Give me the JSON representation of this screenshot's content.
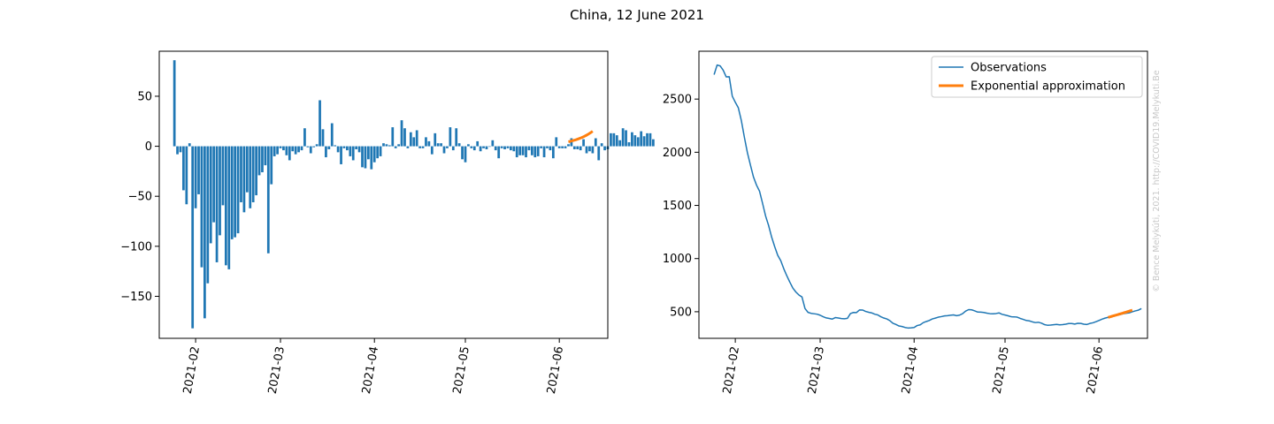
{
  "figure": {
    "title": "China, 12 June 2021",
    "credit": "© Bence Melykúti, 2021. http://COVID19.Melykuti.Be"
  },
  "chart_data": [
    {
      "type": "bar",
      "title": "",
      "xlabel": "",
      "ylabel": "",
      "x_axis": {
        "type": "date",
        "range": [
          "2021-01-20",
          "2021-06-17"
        ],
        "ticks": [
          "2021-02",
          "2021-03",
          "2021-04",
          "2021-05",
          "2021-06"
        ]
      },
      "ylim": [
        -192,
        95
      ],
      "yticks": [
        50,
        0,
        -50,
        -100,
        -150
      ],
      "ytick_labels": [
        "50",
        "0",
        "−50",
        "−100",
        "−150"
      ],
      "colors": {
        "bars": "#1f77b4",
        "fit": "#ff7f0e"
      },
      "series": [
        {
          "start_date": "2021-01-25",
          "values": [
            86,
            -8,
            -6,
            -44,
            -58,
            3,
            -182,
            -62,
            -48,
            -121,
            -172,
            -137,
            -97,
            -76,
            -116,
            -89,
            -59,
            -119,
            -123,
            -93,
            -91,
            -87,
            -56,
            -66,
            -46,
            -62,
            -56,
            -49,
            -29,
            -26,
            -19,
            -107,
            -38,
            -10,
            -8,
            -2,
            -4,
            -9,
            -14,
            -5,
            -8,
            -6,
            -4,
            18,
            -1,
            -7,
            -1,
            2,
            46,
            17,
            -11,
            -3,
            23,
            1,
            -6,
            -18,
            -2,
            -4,
            -10,
            -14,
            -3,
            -6,
            -21,
            -22,
            -13,
            -23,
            -16,
            -12,
            -10,
            3,
            2,
            1,
            19,
            -2,
            2,
            26,
            18,
            -2,
            14,
            9,
            16,
            -2,
            -2,
            9,
            5,
            -8,
            13,
            3,
            3,
            -7,
            -2,
            19,
            -4,
            18,
            3,
            -13,
            -16,
            2,
            -2,
            -4,
            5,
            -5,
            -2,
            -3,
            0,
            6,
            -4,
            -12,
            -2,
            -3,
            -2,
            -4,
            -5,
            -11,
            -9,
            -9,
            -11,
            -4,
            -9,
            -11,
            -10,
            -2,
            -11,
            -2,
            -4,
            -12,
            9,
            -2,
            -2,
            -2,
            2,
            8,
            -3,
            -3,
            -4,
            7,
            -7,
            -5,
            -7,
            8,
            -14,
            3,
            -4,
            -3,
            13,
            13,
            11,
            6,
            18,
            16,
            4,
            14,
            11,
            9,
            15,
            10,
            13,
            13,
            7
          ],
          "fit": {
            "start_date": "2021-06-04",
            "end_date": "2021-06-12",
            "start_value": 4.5,
            "end_value": 15
          }
        }
      ]
    },
    {
      "type": "line",
      "title": "",
      "xlabel": "",
      "ylabel": "",
      "x_axis": {
        "type": "date",
        "range": [
          "2021-01-20",
          "2021-06-17"
        ],
        "ticks": [
          "2021-02",
          "2021-03",
          "2021-04",
          "2021-05",
          "2021-06"
        ]
      },
      "ylim": [
        250,
        2950
      ],
      "yticks": [
        2500,
        2000,
        1500,
        1000,
        500
      ],
      "ytick_labels": [
        "2500",
        "2000",
        "1500",
        "1000",
        "500"
      ],
      "colors": {
        "observations": "#1f77b4",
        "fit": "#ff7f0e"
      },
      "legend": {
        "position": "upper right",
        "entries": [
          "Observations",
          "Exponential approximation"
        ]
      },
      "series": [
        {
          "name": "Observations",
          "start_date": "2021-01-25",
          "values": [
            2730,
            2820,
            2812,
            2772,
            2709,
            2710,
            2528,
            2470,
            2418,
            2297,
            2140,
            1995,
            1879,
            1767,
            1691,
            1634,
            1519,
            1400,
            1310,
            1201,
            1112,
            1031,
            980,
            904,
            838,
            778,
            722,
            685,
            657,
            639,
            530,
            494,
            485,
            481,
            477,
            467,
            453,
            442,
            437,
            431,
            445,
            441,
            436,
            434,
            438,
            483,
            493,
            492,
            517,
            516,
            503,
            495,
            489,
            477,
            470,
            453,
            441,
            432,
            416,
            392,
            380,
            366,
            361,
            352,
            347,
            349,
            352,
            370,
            377,
            397,
            408,
            418,
            432,
            440,
            449,
            454,
            461,
            463,
            467,
            470,
            463,
            468,
            482,
            506,
            520,
            518,
            508,
            497,
            496,
            493,
            487,
            482,
            481,
            483,
            489,
            476,
            469,
            462,
            453,
            452,
            449,
            437,
            428,
            418,
            414,
            405,
            398,
            401,
            393,
            379,
            373,
            375,
            378,
            381,
            377,
            379,
            383,
            389,
            389,
            384,
            391,
            390,
            383,
            380,
            390,
            396,
            406,
            418,
            430,
            440,
            447,
            452,
            458,
            468,
            473,
            481,
            486,
            490,
            500,
            508,
            515,
            530
          ],
          "line_width": 1.5
        },
        {
          "name": "Exponential approximation",
          "start_date": "2021-06-04",
          "end_date": "2021-06-12",
          "start_value": 447,
          "end_value": 515,
          "line_width": 3
        }
      ]
    }
  ]
}
